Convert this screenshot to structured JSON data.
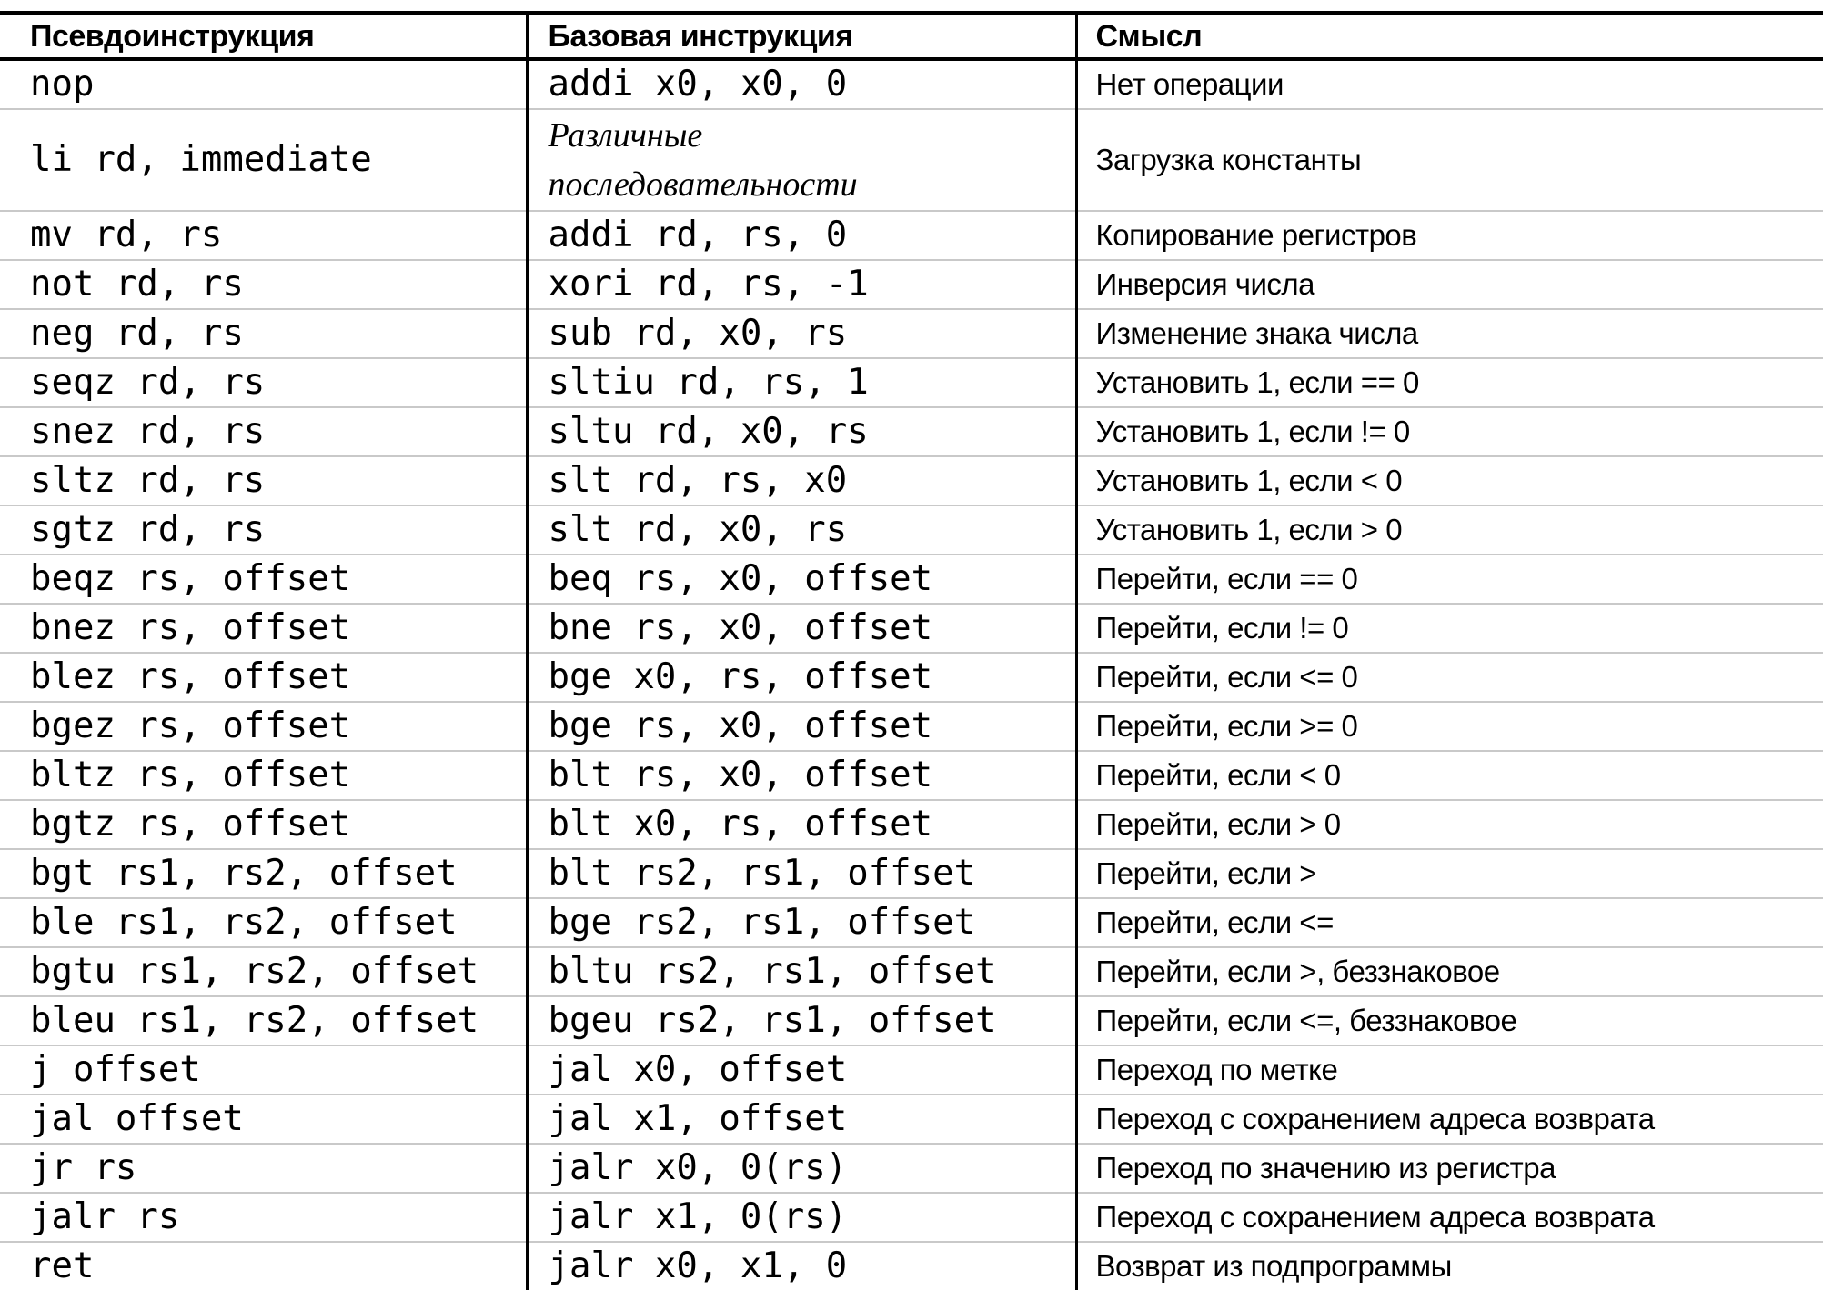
{
  "colors": {
    "border_dark": "#000000",
    "row_separator": "#c9c9c9",
    "text": "#000000",
    "background": "#ffffff"
  },
  "table": {
    "columns": [
      {
        "label": "Псевдоинструкция"
      },
      {
        "label": "Базовая инструкция"
      },
      {
        "label": "Смысл"
      }
    ],
    "rows": [
      {
        "pseudo": "nop",
        "base": "addi x0, x0, 0",
        "base_italic": false,
        "meaning": "Нет операции"
      },
      {
        "pseudo": "li rd, immediate",
        "base": "Различные\nпоследовательности",
        "base_italic": true,
        "meaning": "Загрузка константы"
      },
      {
        "pseudo": "mv rd, rs",
        "base": "addi rd, rs, 0",
        "base_italic": false,
        "meaning": "Копирование регистров"
      },
      {
        "pseudo": "not rd, rs",
        "base": "xori rd, rs, -1",
        "base_italic": false,
        "meaning": "Инверсия числа"
      },
      {
        "pseudo": "neg rd, rs",
        "base": "sub rd, x0, rs",
        "base_italic": false,
        "meaning": "Изменение знака числа"
      },
      {
        "pseudo": "seqz rd, rs",
        "base": "sltiu rd, rs, 1",
        "base_italic": false,
        "meaning": "Установить 1, если == 0"
      },
      {
        "pseudo": "snez rd, rs",
        "base": "sltu rd, x0, rs",
        "base_italic": false,
        "meaning": "Установить 1, если != 0"
      },
      {
        "pseudo": "sltz rd, rs",
        "base": "slt rd, rs, x0",
        "base_italic": false,
        "meaning": "Установить 1, если < 0"
      },
      {
        "pseudo": "sgtz rd, rs",
        "base": "slt rd, x0, rs",
        "base_italic": false,
        "meaning": "Установить 1, если > 0"
      },
      {
        "pseudo": "beqz rs, offset",
        "base": "beq rs, x0, offset",
        "base_italic": false,
        "meaning": "Перейти, если == 0"
      },
      {
        "pseudo": "bnez rs, offset",
        "base": "bne rs, x0, offset",
        "base_italic": false,
        "meaning": "Перейти, если != 0"
      },
      {
        "pseudo": "blez rs, offset",
        "base": "bge x0, rs, offset",
        "base_italic": false,
        "meaning": "Перейти, если <= 0"
      },
      {
        "pseudo": "bgez rs, offset",
        "base": "bge rs, x0, offset",
        "base_italic": false,
        "meaning": "Перейти, если >= 0"
      },
      {
        "pseudo": "bltz rs, offset",
        "base": "blt rs, x0, offset",
        "base_italic": false,
        "meaning": "Перейти, если < 0"
      },
      {
        "pseudo": "bgtz rs, offset",
        "base": "blt x0, rs, offset",
        "base_italic": false,
        "meaning": "Перейти, если > 0"
      },
      {
        "pseudo": "bgt rs1, rs2, offset",
        "base": "blt rs2, rs1, offset",
        "base_italic": false,
        "meaning": "Перейти, если >"
      },
      {
        "pseudo": "ble rs1, rs2, offset",
        "base": "bge rs2, rs1, offset",
        "base_italic": false,
        "meaning": "Перейти, если <="
      },
      {
        "pseudo": "bgtu rs1, rs2, offset",
        "base": "bltu rs2, rs1, offset",
        "base_italic": false,
        "meaning": "Перейти, если >, беззнаковое"
      },
      {
        "pseudo": "bleu rs1, rs2, offset",
        "base": "bgeu rs2, rs1, offset",
        "base_italic": false,
        "meaning": "Перейти, если <=, беззнаковое"
      },
      {
        "pseudo": "j offset",
        "base": "jal x0, offset",
        "base_italic": false,
        "meaning": "Переход по метке"
      },
      {
        "pseudo": "jal offset",
        "base": "jal x1, offset",
        "base_italic": false,
        "meaning": "Переход с сохранением адреса возврата"
      },
      {
        "pseudo": "jr rs",
        "base": "jalr x0, 0(rs)",
        "base_italic": false,
        "meaning": "Переход по значению из регистра"
      },
      {
        "pseudo": "jalr rs",
        "base": "jalr x1, 0(rs)",
        "base_italic": false,
        "meaning": "Переход с сохранением адреса возврата"
      },
      {
        "pseudo": "ret",
        "base": "jalr x0, x1, 0",
        "base_italic": false,
        "meaning": "Возврат из подпрограммы"
      }
    ]
  }
}
